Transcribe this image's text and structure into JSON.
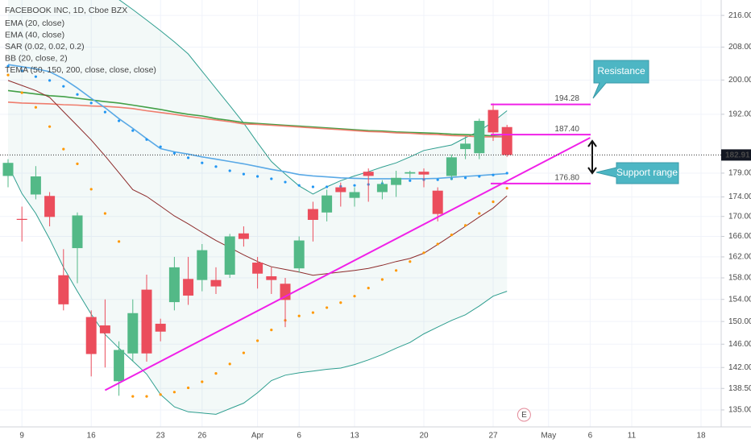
{
  "chart_data": {
    "type": "candlestick",
    "title": "FACEBOOK INC, 1D, Cboe BZX",
    "categories": [
      null,
      "9",
      null,
      null,
      null,
      null,
      "16",
      null,
      null,
      null,
      null,
      "23",
      null,
      null,
      "26",
      null,
      null,
      null,
      "Apr",
      null,
      null,
      "6",
      null,
      null,
      null,
      "13",
      null,
      null,
      null,
      null,
      "20",
      null,
      null,
      null,
      null,
      "27",
      null,
      null,
      null,
      "May",
      null,
      null,
      "6",
      null,
      null,
      "11",
      null,
      null,
      null,
      null,
      "18",
      null
    ],
    "open": [
      178.4,
      169.5,
      174.5,
      174.2,
      158.5,
      163.7,
      150.8,
      149.3,
      139.7,
      144.4,
      155.8,
      149.6,
      153.5,
      157.8,
      157.6,
      157.6,
      158.6,
      166.6,
      160.9,
      158.3,
      156.9,
      159.8,
      171.5,
      170.8,
      176,
      173.8,
      179.3,
      175,
      176.5,
      178.9,
      179.3,
      175.3,
      178.4,
      184.2,
      183.3,
      193,
      189.1,
      null,
      null,
      null,
      null,
      null,
      null,
      null,
      null,
      null,
      null,
      null,
      null,
      null,
      null,
      null
    ],
    "high": [
      182,
      172,
      180.5,
      175,
      163.5,
      170.8,
      152,
      154,
      146.5,
      154,
      158.6,
      150.5,
      162,
      162,
      164.5,
      160,
      166.5,
      168,
      162,
      160,
      158,
      166,
      173,
      175.5,
      177,
      176,
      180,
      177.5,
      179.5,
      179.5,
      180,
      176,
      183,
      187,
      191,
      194.5,
      189.6,
      null,
      null,
      null,
      null,
      null,
      null,
      null,
      null,
      null,
      null,
      null,
      null,
      null,
      null,
      null
    ],
    "low": [
      176,
      165,
      173.5,
      168,
      152,
      157,
      140.5,
      142,
      137.3,
      143,
      143,
      146.5,
      152,
      153,
      155.5,
      155,
      158,
      164,
      156,
      155,
      149,
      159,
      165,
      169,
      172,
      172,
      173,
      173.5,
      174,
      178,
      176,
      169,
      177.5,
      182,
      182,
      186,
      182.5,
      null,
      null,
      null,
      null,
      null,
      null,
      null,
      null,
      null,
      null,
      null,
      null,
      null,
      null,
      null
    ],
    "close": [
      181.2,
      169.3,
      178.3,
      169.9,
      153.1,
      170.2,
      144.3,
      147.9,
      145,
      151.5,
      144.4,
      148.2,
      160,
      154.7,
      163.3,
      156.4,
      166,
      165.5,
      158.8,
      157.6,
      153.9,
      165.2,
      169.3,
      174.3,
      175,
      175,
      178.4,
      176.7,
      178,
      179.2,
      178.7,
      170.5,
      182.4,
      185.4,
      190.5,
      187.9,
      182.91,
      null,
      null,
      null,
      null,
      null,
      null,
      null,
      null,
      null,
      null,
      null,
      null,
      null,
      null,
      null
    ],
    "up_color": "#53b987",
    "down_color": "#eb4d5c",
    "series": [
      {
        "name": "EMA (20, close)",
        "style": "line",
        "color": "#8d2b2b",
        "values": [
          199.9,
          198.7,
          197.5,
          195.9,
          192.6,
          189.4,
          186.2,
          182.7,
          179.1,
          175.5,
          174.1,
          172.1,
          170.1,
          168.5,
          166.8,
          165.2,
          163.8,
          162.4,
          161.1,
          160.1,
          159.6,
          159.1,
          158.5,
          158.8,
          159.1,
          159.4,
          159.8,
          160.4,
          161.1,
          161.7,
          162.7,
          164.4,
          166.2,
          168.0,
          169.9,
          171.7,
          174.2,
          null,
          null,
          null,
          null,
          null,
          null,
          null,
          null,
          null,
          null,
          null,
          null,
          null,
          null,
          null
        ]
      },
      {
        "name": "EMA (40, close)",
        "style": "dots",
        "color": "#2196f3",
        "values": [
          203.3,
          202.2,
          200.8,
          199.9,
          198.5,
          196.6,
          194.6,
          192.5,
          190.5,
          188.3,
          186.3,
          184.7,
          183.3,
          182.3,
          181.2,
          180.4,
          179.5,
          178.8,
          178.3,
          177.8,
          177.1,
          176.4,
          176.1,
          176.1,
          176.2,
          176.4,
          176.6,
          176.8,
          177.1,
          177.4,
          177.6,
          177.6,
          177.8,
          178.0,
          178.3,
          178.6,
          179.0,
          null,
          null,
          null,
          null,
          null,
          null,
          null,
          null,
          null,
          null,
          null,
          null,
          null,
          null,
          null
        ]
      },
      {
        "name": "SAR (0.02, 0.02, 0.2)",
        "style": "dots",
        "color": "#ff9800",
        "values": [
          201.2,
          197.0,
          193.6,
          189.2,
          184.2,
          181.0,
          175.6,
          170.6,
          165.0,
          137.2,
          137.2,
          137.5,
          137.9,
          138.6,
          139.6,
          141.0,
          142.6,
          144.5,
          146.6,
          148.5,
          150.2,
          151.0,
          151.6,
          152.5,
          153.4,
          154.6,
          156.1,
          157.7,
          159.4,
          161.1,
          162.8,
          164.5,
          166.3,
          168.2,
          170.6,
          173.0,
          175.8,
          null,
          null,
          null,
          null,
          null,
          null,
          null,
          null,
          null,
          null,
          null,
          null,
          null,
          null,
          null
        ]
      },
      {
        "name": "BB (20, close, 2)",
        "style": "band",
        "color": "#2e9e8f",
        "upper": [
          243.2,
          240.2,
          237.3,
          234.3,
          231.4,
          228.6,
          225.7,
          222.9,
          220.1,
          217.5,
          214.8,
          212.1,
          209.3,
          206.3,
          202.1,
          198.0,
          194.0,
          190.0,
          185.6,
          181.5,
          178.8,
          176.3,
          174.6,
          176.1,
          177.4,
          178.4,
          179.3,
          180.3,
          181.2,
          182.5,
          183.9,
          184.5,
          185.1,
          186.7,
          188.2,
          190.3,
          192.8,
          null,
          null,
          null,
          null,
          null,
          null,
          null,
          null,
          null,
          null,
          null,
          null,
          null,
          null,
          null
        ],
        "lower": [
          180.7,
          174.7,
          170.6,
          165.5,
          160.0,
          155.5,
          151.3,
          147.7,
          145.3,
          143.1,
          140.9,
          137.5,
          135.5,
          134.7,
          134.5,
          134.3,
          135.2,
          136.1,
          137.8,
          139.8,
          140.7,
          141.1,
          141.4,
          141.7,
          141.9,
          142.5,
          143.3,
          144.2,
          145.3,
          146.3,
          147.8,
          149.0,
          150.2,
          151.2,
          152.8,
          154.6,
          155.5,
          null,
          null,
          null,
          null,
          null,
          null,
          null,
          null,
          null,
          null,
          null,
          null,
          null,
          null,
          null
        ]
      },
      {
        "name": "TEMA (50, 150, 200, close, close, close)",
        "style": "lines",
        "lines": [
          {
            "color": "#43a047",
            "values": [
              197.5,
              197.1,
              196.7,
              196.3,
              196.1,
              195.7,
              195.3,
              194.9,
              194.6,
              194.1,
              193.6,
              193.1,
              192.5,
              192.0,
              191.6,
              191.0,
              190.6,
              190.1,
              189.9,
              189.7,
              189.5,
              189.3,
              189.1,
              188.9,
              188.7,
              188.5,
              188.3,
              188.2,
              188.0,
              187.9,
              187.8,
              187.7,
              187.5,
              187.4,
              187.3,
              187.1,
              186.9,
              null,
              null,
              null,
              null,
              null,
              null,
              null,
              null,
              null,
              null,
              null,
              null,
              null,
              null,
              null
            ]
          },
          {
            "color": "#ef7d6d",
            "values": [
              194.8,
              194.6,
              194.5,
              194.4,
              194.2,
              194.1,
              193.9,
              193.8,
              193.6,
              193.3,
              192.8,
              192.4,
              192.0,
              191.5,
              191.1,
              190.7,
              190.3,
              189.8,
              189.7,
              189.5,
              189.3,
              189.1,
              188.9,
              188.7,
              188.5,
              188.3,
              188.1,
              188.0,
              187.8,
              187.7,
              187.5,
              187.4,
              187.2,
              187.1,
              186.9,
              186.9,
              186.9,
              null,
              null,
              null,
              null,
              null,
              null,
              null,
              null,
              null,
              null,
              null,
              null,
              null,
              null,
              null
            ]
          },
          {
            "color": "#5aa9e6",
            "values": [
              203.7,
              203.2,
              202.7,
              202.0,
              200.3,
              198.1,
              195.7,
              193.5,
              191.0,
              188.8,
              186.5,
              184.3,
              183.6,
              183.1,
              182.5,
              182.0,
              181.5,
              181.0,
              180.4,
              179.8,
              179.3,
              178.7,
              178.4,
              178.2,
              178.0,
              177.9,
              177.8,
              177.8,
              177.8,
              177.8,
              177.8,
              177.9,
              178.1,
              178.3,
              178.5,
              178.7,
              178.9,
              null,
              null,
              null,
              null,
              null,
              null,
              null,
              null,
              null,
              null,
              null,
              null,
              null,
              null,
              null
            ]
          }
        ]
      }
    ],
    "ylim": [
      132.3,
      220
    ],
    "log_scale": true,
    "grid": true,
    "yticks": [
      {
        "value": 216,
        "label": "216.00"
      },
      {
        "value": 208,
        "label": "208.00"
      },
      {
        "value": 200,
        "label": "200.00"
      },
      {
        "value": 192,
        "label": "192.00"
      },
      {
        "value": 179,
        "label": "179.00"
      },
      {
        "value": 174,
        "label": "174.00"
      },
      {
        "value": 170,
        "label": "170.00"
      },
      {
        "value": 166,
        "label": "166.00"
      },
      {
        "value": 162,
        "label": "162.00"
      },
      {
        "value": 158,
        "label": "158.00"
      },
      {
        "value": 154,
        "label": "154.00"
      },
      {
        "value": 150,
        "label": "150.00"
      },
      {
        "value": 146,
        "label": "146.00"
      },
      {
        "value": 142,
        "label": "142.00"
      },
      {
        "value": 138.5,
        "label": "138.50"
      },
      {
        "value": 135,
        "label": "135.00"
      }
    ],
    "last_price": 182.91,
    "annotation_color": "#f020e8",
    "levels": [
      194.28,
      {
        "value": 187.4,
        "label": "187.40"
      },
      {
        "value": 176.8,
        "label": "176.80"
      }
    ],
    "trendline": {
      "x": [
        7,
        42
      ],
      "y": [
        138.2,
        186.7
      ]
    },
    "callouts": [
      "Resistance",
      "Support range"
    ],
    "earnings_label": "E"
  }
}
